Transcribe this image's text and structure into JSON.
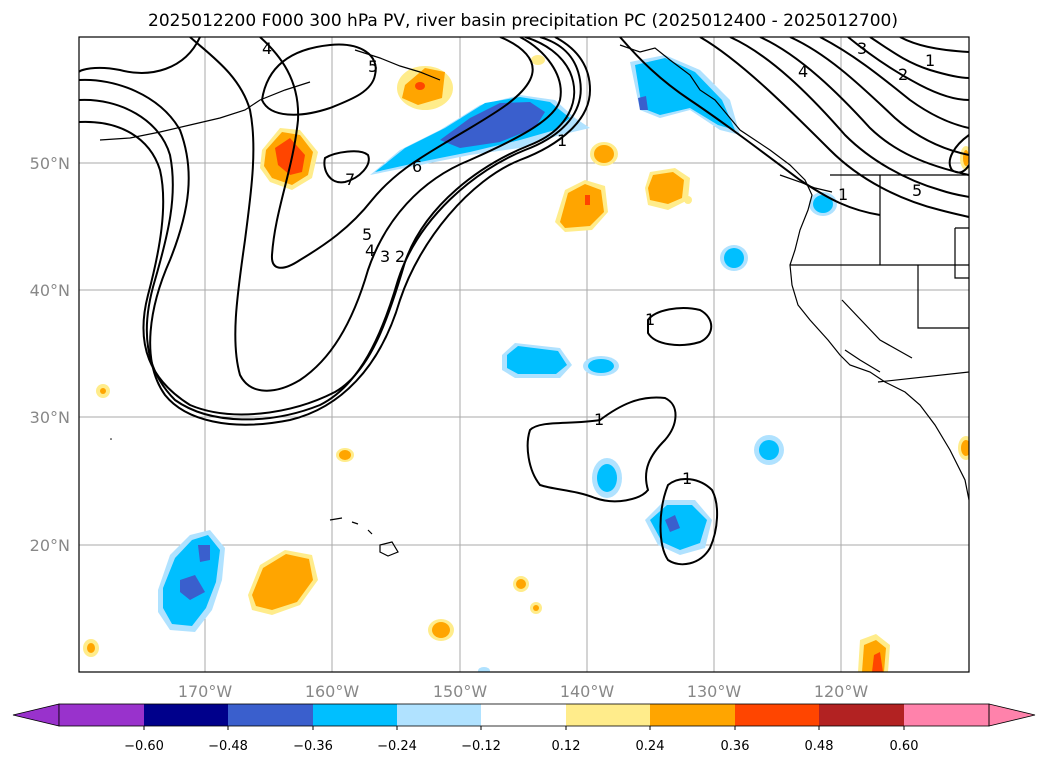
{
  "title": "2025012200 F000 300 hPa PV, river basin precipitation PC (2025012400 - 2025012700)",
  "map": {
    "lon_range": [
      -180,
      -110
    ],
    "lat_range": [
      10,
      60
    ],
    "lon_ticks": [
      {
        "value": -170,
        "label": "170°W"
      },
      {
        "value": -160,
        "label": "160°W"
      },
      {
        "value": -150,
        "label": "150°W"
      },
      {
        "value": -140,
        "label": "140°W"
      },
      {
        "value": -130,
        "label": "130°W"
      },
      {
        "value": -120,
        "label": "120°W"
      }
    ],
    "lat_ticks": [
      {
        "value": 20,
        "label": "20°N"
      },
      {
        "value": 30,
        "label": "30°N"
      },
      {
        "value": 40,
        "label": "40°N"
      },
      {
        "value": 50,
        "label": "50°N"
      }
    ],
    "gridlines": true,
    "pv_contour_labels": [
      "1",
      "2",
      "3",
      "4",
      "5",
      "6",
      "7"
    ]
  },
  "colorbar": {
    "extend": "both",
    "colors": [
      "#9932cc",
      "#00008b",
      "#3a5fcd",
      "#00bfff",
      "#b0e2ff",
      "#ffffff",
      "#ffec8b",
      "#ffa500",
      "#ff4500",
      "#b22222",
      "#ff82ab"
    ],
    "tick_labels": [
      "−0.60",
      "−0.48",
      "−0.36",
      "−0.24",
      "−0.12",
      "0.12",
      "0.24",
      "0.36",
      "0.48",
      "0.60"
    ]
  }
}
